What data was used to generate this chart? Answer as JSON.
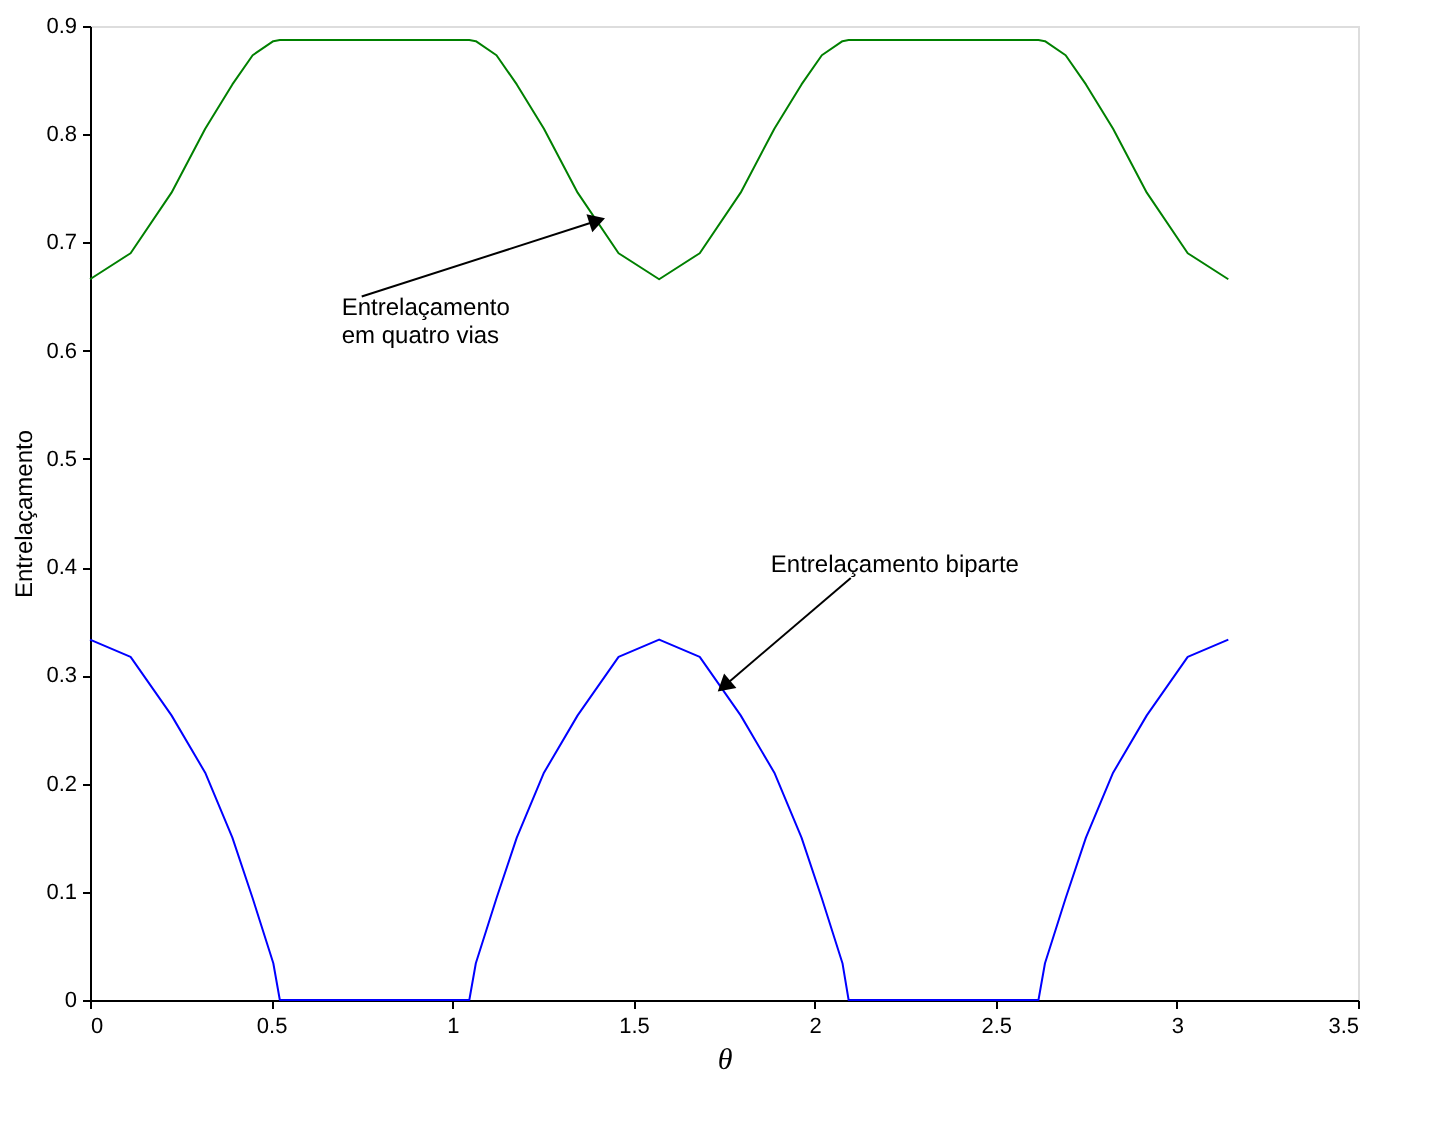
{
  "chart_data": {
    "type": "line",
    "xlabel": "θ",
    "ylabel": "Entrelaçamento",
    "xlim": [
      0,
      3.5
    ],
    "xticks": [
      0,
      0.5,
      1,
      1.5,
      2,
      2.5,
      3,
      3.5
    ],
    "ylim": [
      0,
      0.9
    ],
    "yticks": [
      0,
      0.1,
      0.2,
      0.3,
      0.4,
      0.5,
      0.6,
      0.7,
      0.8,
      0.9
    ],
    "grid": false,
    "marker": "none",
    "line_style": "solid",
    "series": [
      {
        "color": "#008000",
        "x": [
          0,
          0.112,
          0.225,
          0.318,
          0.393,
          0.449,
          0.506,
          0.524,
          1.047,
          1.065,
          1.122,
          1.178,
          1.253,
          1.346,
          1.459,
          1.571,
          1.683,
          1.796,
          1.889,
          1.964,
          2.02,
          2.077,
          2.094,
          2.618,
          2.636,
          2.693,
          2.749,
          2.824,
          2.917,
          3.03,
          3.142
        ],
        "values": [
          0.666,
          0.69,
          0.746,
          0.805,
          0.846,
          0.873,
          0.886,
          0.887,
          0.887,
          0.886,
          0.873,
          0.846,
          0.805,
          0.746,
          0.69,
          0.666,
          0.69,
          0.746,
          0.805,
          0.846,
          0.873,
          0.886,
          0.887,
          0.887,
          0.886,
          0.873,
          0.846,
          0.805,
          0.746,
          0.69,
          0.666
        ]
      },
      {
        "color": "#0000ff",
        "x": [
          0,
          0.112,
          0.225,
          0.318,
          0.393,
          0.449,
          0.506,
          0.524,
          1.047,
          1.065,
          1.122,
          1.178,
          1.253,
          1.346,
          1.459,
          1.571,
          1.683,
          1.796,
          1.889,
          1.964,
          2.02,
          2.077,
          2.094,
          2.618,
          2.636,
          2.693,
          2.749,
          2.824,
          2.917,
          3.03,
          3.142
        ],
        "values": [
          0.333,
          0.317,
          0.263,
          0.21,
          0.15,
          0.094,
          0.034,
          0,
          0,
          0.034,
          0.094,
          0.15,
          0.21,
          0.263,
          0.317,
          0.333,
          0.317,
          0.263,
          0.21,
          0.15,
          0.094,
          0.034,
          0,
          0,
          0.034,
          0.094,
          0.15,
          0.21,
          0.263,
          0.317,
          0.333
        ]
      }
    ],
    "annotations": [
      {
        "text": "Entrelaçamento\nem quatro vias",
        "x": 1.4,
        "y": 0.72
      },
      {
        "text": "Entrelaçamento biparte",
        "x": 1.75,
        "y": 0.29
      }
    ]
  }
}
